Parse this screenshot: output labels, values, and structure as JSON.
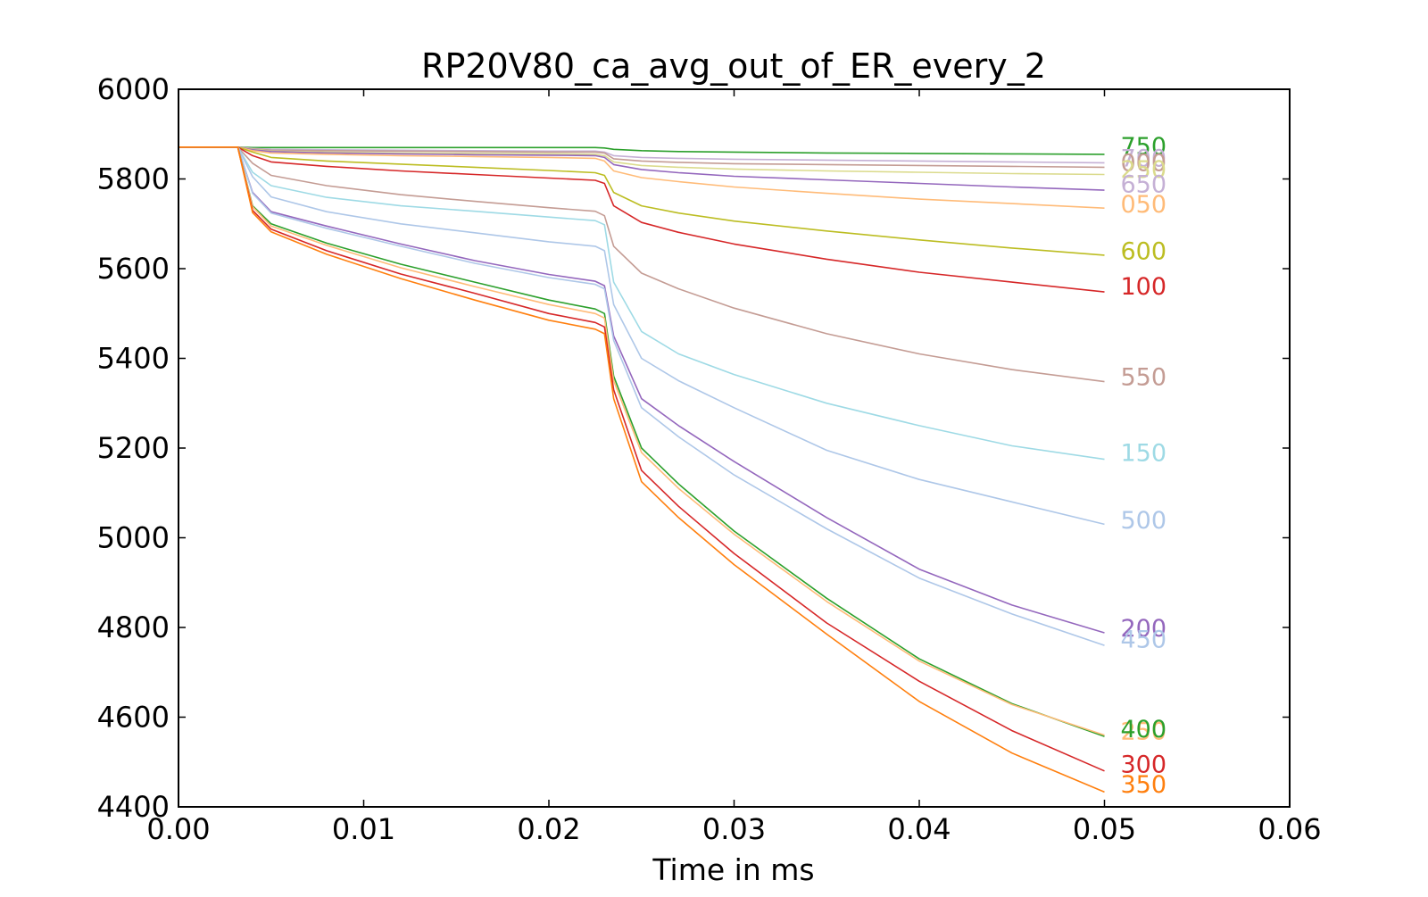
{
  "chart_data": {
    "type": "line",
    "title": "RP20V80_ca_avg_out_of_ER_every_2",
    "xlabel": "Time in ms",
    "ylabel": "",
    "xlim": [
      0.0,
      0.06
    ],
    "ylim": [
      4400,
      6000
    ],
    "x_ticks": [
      "0.00",
      "0.01",
      "0.02",
      "0.03",
      "0.04",
      "0.05",
      "0.06"
    ],
    "y_ticks": [
      "4400",
      "4600",
      "4800",
      "5000",
      "5200",
      "5400",
      "5600",
      "5800",
      "6000"
    ],
    "grid": false,
    "legend": "none",
    "x": [
      0.0,
      0.0032,
      0.004,
      0.005,
      0.008,
      0.012,
      0.016,
      0.02,
      0.0225,
      0.023,
      0.0235,
      0.025,
      0.027,
      0.03,
      0.035,
      0.04,
      0.045,
      0.05
    ],
    "series": [
      {
        "name": "750",
        "color": "#2ca02c",
        "values": [
          5871,
          5871,
          5870,
          5870,
          5870,
          5870,
          5870,
          5870,
          5870,
          5869,
          5866,
          5863,
          5861,
          5860,
          5858,
          5857,
          5856,
          5855
        ]
      },
      {
        "name": "700",
        "color": "#c5b0d5",
        "values": [
          5871,
          5871,
          5868,
          5866,
          5865,
          5864,
          5863,
          5862,
          5862,
          5860,
          5852,
          5848,
          5846,
          5844,
          5842,
          5840,
          5838,
          5836
        ]
      },
      {
        "name": "000",
        "color": "#c49c94",
        "values": [
          5871,
          5871,
          5867,
          5864,
          5863,
          5862,
          5861,
          5860,
          5860,
          5858,
          5845,
          5840,
          5837,
          5834,
          5832,
          5830,
          5828,
          5826
        ]
      },
      {
        "name": "250",
        "color": "#dbdb8d",
        "values": [
          5871,
          5871,
          5866,
          5862,
          5860,
          5858,
          5857,
          5856,
          5855,
          5852,
          5838,
          5830,
          5826,
          5822,
          5818,
          5815,
          5812,
          5810
        ]
      },
      {
        "name": "650",
        "color": "#9467bd",
        "values": [
          5871,
          5871,
          5865,
          5861,
          5858,
          5856,
          5854,
          5853,
          5852,
          5848,
          5832,
          5821,
          5814,
          5806,
          5798,
          5790,
          5782,
          5775
        ]
      },
      {
        "name": "050",
        "color": "#ffbb78",
        "values": [
          5871,
          5871,
          5863,
          5858,
          5855,
          5852,
          5850,
          5848,
          5846,
          5840,
          5818,
          5803,
          5794,
          5782,
          5768,
          5755,
          5745,
          5735
        ]
      },
      {
        "name": "600",
        "color": "#bcbd22",
        "values": [
          5871,
          5871,
          5860,
          5848,
          5840,
          5833,
          5826,
          5819,
          5814,
          5808,
          5770,
          5740,
          5724,
          5706,
          5684,
          5664,
          5646,
          5630
        ]
      },
      {
        "name": "100",
        "color": "#d62728",
        "values": [
          5871,
          5871,
          5852,
          5838,
          5828,
          5818,
          5810,
          5802,
          5797,
          5790,
          5740,
          5703,
          5681,
          5655,
          5621,
          5592,
          5570,
          5548
        ]
      },
      {
        "name": "550",
        "color": "#c49c94",
        "values": [
          5871,
          5871,
          5835,
          5808,
          5785,
          5765,
          5750,
          5736,
          5728,
          5718,
          5650,
          5590,
          5555,
          5512,
          5455,
          5410,
          5375,
          5348
        ]
      },
      {
        "name": "150",
        "color": "#9edae5",
        "values": [
          5871,
          5871,
          5815,
          5785,
          5759,
          5740,
          5728,
          5715,
          5707,
          5698,
          5570,
          5460,
          5410,
          5364,
          5300,
          5250,
          5205,
          5175
        ]
      },
      {
        "name": "500",
        "color": "#aec7e8",
        "values": [
          5871,
          5871,
          5805,
          5760,
          5727,
          5700,
          5680,
          5660,
          5650,
          5640,
          5520,
          5400,
          5350,
          5290,
          5195,
          5130,
          5080,
          5030
        ]
      },
      {
        "name": "200",
        "color": "#9467bd",
        "values": [
          5871,
          5871,
          5770,
          5727,
          5695,
          5655,
          5618,
          5587,
          5572,
          5562,
          5450,
          5310,
          5250,
          5170,
          5045,
          4930,
          4850,
          4788
        ]
      },
      {
        "name": "450",
        "color": "#aec7e8",
        "values": [
          5871,
          5871,
          5768,
          5724,
          5690,
          5650,
          5612,
          5580,
          5565,
          5555,
          5440,
          5290,
          5225,
          5140,
          5020,
          4910,
          4830,
          4760
        ]
      },
      {
        "name": "400",
        "color": "#2ca02c",
        "values": [
          5871,
          5871,
          5740,
          5700,
          5657,
          5610,
          5570,
          5530,
          5510,
          5500,
          5360,
          5200,
          5120,
          5015,
          4865,
          4730,
          4630,
          4557
        ]
      },
      {
        "name": "250",
        "color": "#ffbb78",
        "values": [
          5871,
          5871,
          5738,
          5695,
          5652,
          5602,
          5560,
          5520,
          5500,
          5490,
          5350,
          5190,
          5110,
          5008,
          4858,
          4725,
          4628,
          4560
        ]
      },
      {
        "name": "300",
        "color": "#d62728",
        "values": [
          5871,
          5871,
          5730,
          5688,
          5640,
          5588,
          5545,
          5500,
          5480,
          5470,
          5330,
          5150,
          5070,
          4965,
          4810,
          4680,
          4570,
          4480
        ]
      },
      {
        "name": "350",
        "color": "#ff7f0e",
        "values": [
          5871,
          5871,
          5725,
          5682,
          5632,
          5578,
          5530,
          5485,
          5465,
          5455,
          5310,
          5125,
          5045,
          4940,
          4785,
          4635,
          4520,
          4433
        ]
      }
    ],
    "end_labels": [
      {
        "text": "750",
        "color": "#2ca02c",
        "y": 5875
      },
      {
        "text": "700",
        "color": "#c5b0d5",
        "y": 5848
      },
      {
        "text": "000",
        "color": "#c49c94",
        "y": 5838
      },
      {
        "text": "250",
        "color": "#dbdb8d",
        "y": 5823
      },
      {
        "text": "650",
        "color": "#c5b0d5",
        "y": 5790
      },
      {
        "text": "050",
        "color": "#ffbb78",
        "y": 5745
      },
      {
        "text": "600",
        "color": "#bcbd22",
        "y": 5641
      },
      {
        "text": "100",
        "color": "#d62728",
        "y": 5562
      },
      {
        "text": "550",
        "color": "#c49c94",
        "y": 5360
      },
      {
        "text": "150",
        "color": "#9edae5",
        "y": 5191
      },
      {
        "text": "500",
        "color": "#aec7e8",
        "y": 5041
      },
      {
        "text": "200",
        "color": "#9467bd",
        "y": 4800
      },
      {
        "text": "450",
        "color": "#aec7e8",
        "y": 4775
      },
      {
        "text": "250",
        "color": "#ffbb78",
        "y": 4570
      },
      {
        "text": "400",
        "color": "#2ca02c",
        "y": 4575
      },
      {
        "text": "300",
        "color": "#d62728",
        "y": 4497
      },
      {
        "text": "350",
        "color": "#ff7f0e",
        "y": 4452
      }
    ]
  }
}
